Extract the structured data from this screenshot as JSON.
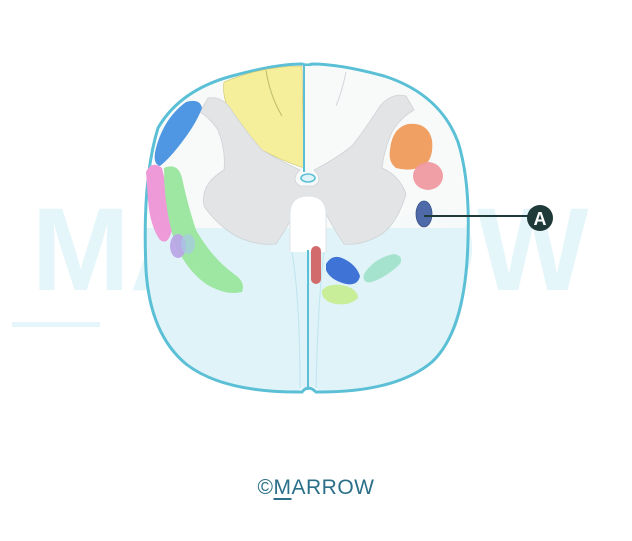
{
  "watermark": {
    "text": "MARROW"
  },
  "callout": {
    "label": "A"
  },
  "footer": {
    "symbol": "©",
    "first_letter": "M",
    "rest": "ARROW"
  },
  "colors": {
    "outline": "#5bc0d6",
    "white_matter": "#f7f9fa",
    "white_matter_ventral": "#dff3f8",
    "grey_matter": "#e2e4e6",
    "dorsal_column": "#f5ee9a",
    "lateral_corticospinal": "#f0a062",
    "rubrospinal": "#ef9aa1",
    "tract_a": "#4e6aa8",
    "dorsal_spinocerebellar": "#4f97e3",
    "ventral_spinocerebellar": "#ef9ad8",
    "spinothalamic": "#9ee7a3",
    "spino_olivary": "#b9a6e6",
    "ventral_corticospinal": "#d26b6b",
    "vestibulospinal": "#3f73d6",
    "reticulospinal": "#c9ee9a",
    "tectospinal": "#a6e3cf",
    "callout_dark": "#1f3a38",
    "watermark": "#e4f6fa",
    "footer_text": "#2b6f88"
  }
}
